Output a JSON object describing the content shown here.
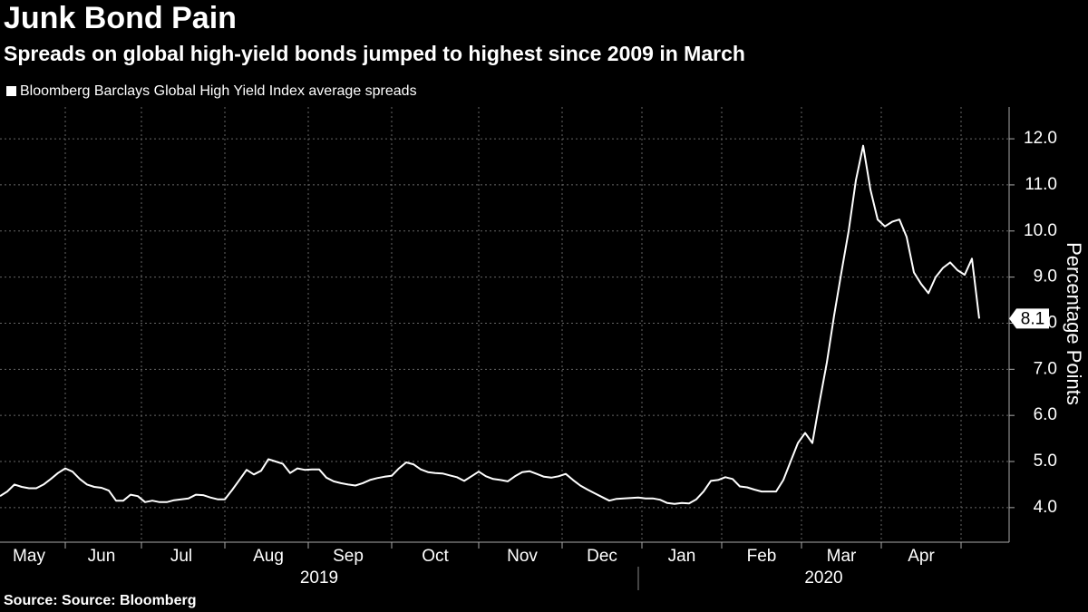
{
  "chart_data": {
    "type": "line",
    "title": "Junk Bond Pain",
    "subtitle": "Spreads on global high-yield bonds jumped to highest since 2009 in March",
    "y_axis_label": "Percentage Points",
    "source": "Source: Source: Bloomberg",
    "ylim": [
      3.25,
      12.69
    ],
    "yticks": [
      {
        "value": 4,
        "label": "4.0"
      },
      {
        "value": 5,
        "label": "5.0"
      },
      {
        "value": 6,
        "label": "6.0"
      },
      {
        "value": 7,
        "label": "7.0"
      },
      {
        "value": 8,
        "label": "8.0"
      },
      {
        "value": 9,
        "label": "9.0"
      },
      {
        "value": 10,
        "label": "10.0"
      },
      {
        "value": 11,
        "label": "11.0"
      },
      {
        "value": 12,
        "label": "12.0"
      }
    ],
    "grid": true,
    "categories": [
      null,
      null,
      null,
      null,
      "May",
      null,
      null,
      null,
      null,
      null,
      null,
      null,
      null,
      null,
      "Jun",
      null,
      null,
      null,
      null,
      null,
      null,
      null,
      null,
      null,
      null,
      "Jul",
      null,
      null,
      null,
      null,
      null,
      null,
      null,
      null,
      null,
      null,
      null,
      "Aug",
      null,
      null,
      null,
      null,
      null,
      null,
      null,
      null,
      null,
      null,
      "Sep",
      null,
      null,
      null,
      null,
      null,
      null,
      null,
      null,
      null,
      null,
      null,
      "Oct",
      null,
      null,
      null,
      null,
      null,
      null,
      null,
      null,
      null,
      null,
      null,
      "Nov",
      null,
      null,
      null,
      null,
      null,
      null,
      null,
      null,
      null,
      null,
      "Dec",
      null,
      null,
      null,
      null,
      null,
      null,
      null,
      null,
      null,
      null,
      "Jan",
      null,
      null,
      null,
      null,
      null,
      null,
      null,
      null,
      null,
      null,
      "Feb",
      null,
      null,
      null,
      null,
      null,
      null,
      null,
      null,
      null,
      null,
      "Mar",
      null,
      null,
      null,
      null,
      null,
      null,
      null,
      null,
      null,
      null,
      "Apr",
      null,
      null,
      null,
      null,
      null,
      null,
      null,
      null
    ],
    "x_groups": [
      {
        "label": "2019",
        "start": 0
      },
      {
        "label": "2020",
        "start": 88
      }
    ],
    "series": [
      {
        "name": "Bloomberg Barclays Global High Yield Index average spreads",
        "color": "#ffffff",
        "values": [
          4.25,
          4.35,
          4.5,
          4.45,
          4.42,
          4.42,
          4.5,
          4.62,
          4.75,
          4.85,
          4.78,
          4.62,
          4.5,
          4.45,
          4.43,
          4.37,
          4.15,
          4.15,
          4.28,
          4.25,
          4.12,
          4.15,
          4.12,
          4.12,
          4.16,
          4.18,
          4.2,
          4.28,
          4.27,
          4.22,
          4.18,
          4.18,
          4.38,
          4.6,
          4.82,
          4.72,
          4.8,
          5.05,
          5.0,
          4.95,
          4.75,
          4.85,
          4.82,
          4.83,
          4.83,
          4.65,
          4.57,
          4.53,
          4.5,
          4.48,
          4.53,
          4.6,
          4.64,
          4.67,
          4.69,
          4.85,
          4.98,
          4.94,
          4.83,
          4.77,
          4.75,
          4.74,
          4.7,
          4.66,
          4.58,
          4.68,
          4.78,
          4.68,
          4.62,
          4.6,
          4.57,
          4.68,
          4.77,
          4.79,
          4.73,
          4.67,
          4.65,
          4.68,
          4.73,
          4.6,
          4.48,
          4.39,
          4.31,
          4.23,
          4.15,
          4.19,
          4.2,
          4.21,
          4.22,
          4.2,
          4.2,
          4.17,
          4.1,
          4.08,
          4.1,
          4.09,
          4.18,
          4.35,
          4.58,
          4.6,
          4.66,
          4.62,
          4.46,
          4.44,
          4.39,
          4.35,
          4.35,
          4.35,
          4.6,
          5.0,
          5.4,
          5.62,
          5.4,
          6.3,
          7.15,
          8.17,
          9.1,
          10.0,
          11.1,
          11.85,
          10.9,
          10.25,
          10.1,
          10.2,
          10.25,
          9.87,
          9.1,
          8.85,
          8.65,
          9.0,
          9.2,
          9.32,
          9.15,
          9.05,
          9.4,
          8.1
        ]
      }
    ]
  }
}
